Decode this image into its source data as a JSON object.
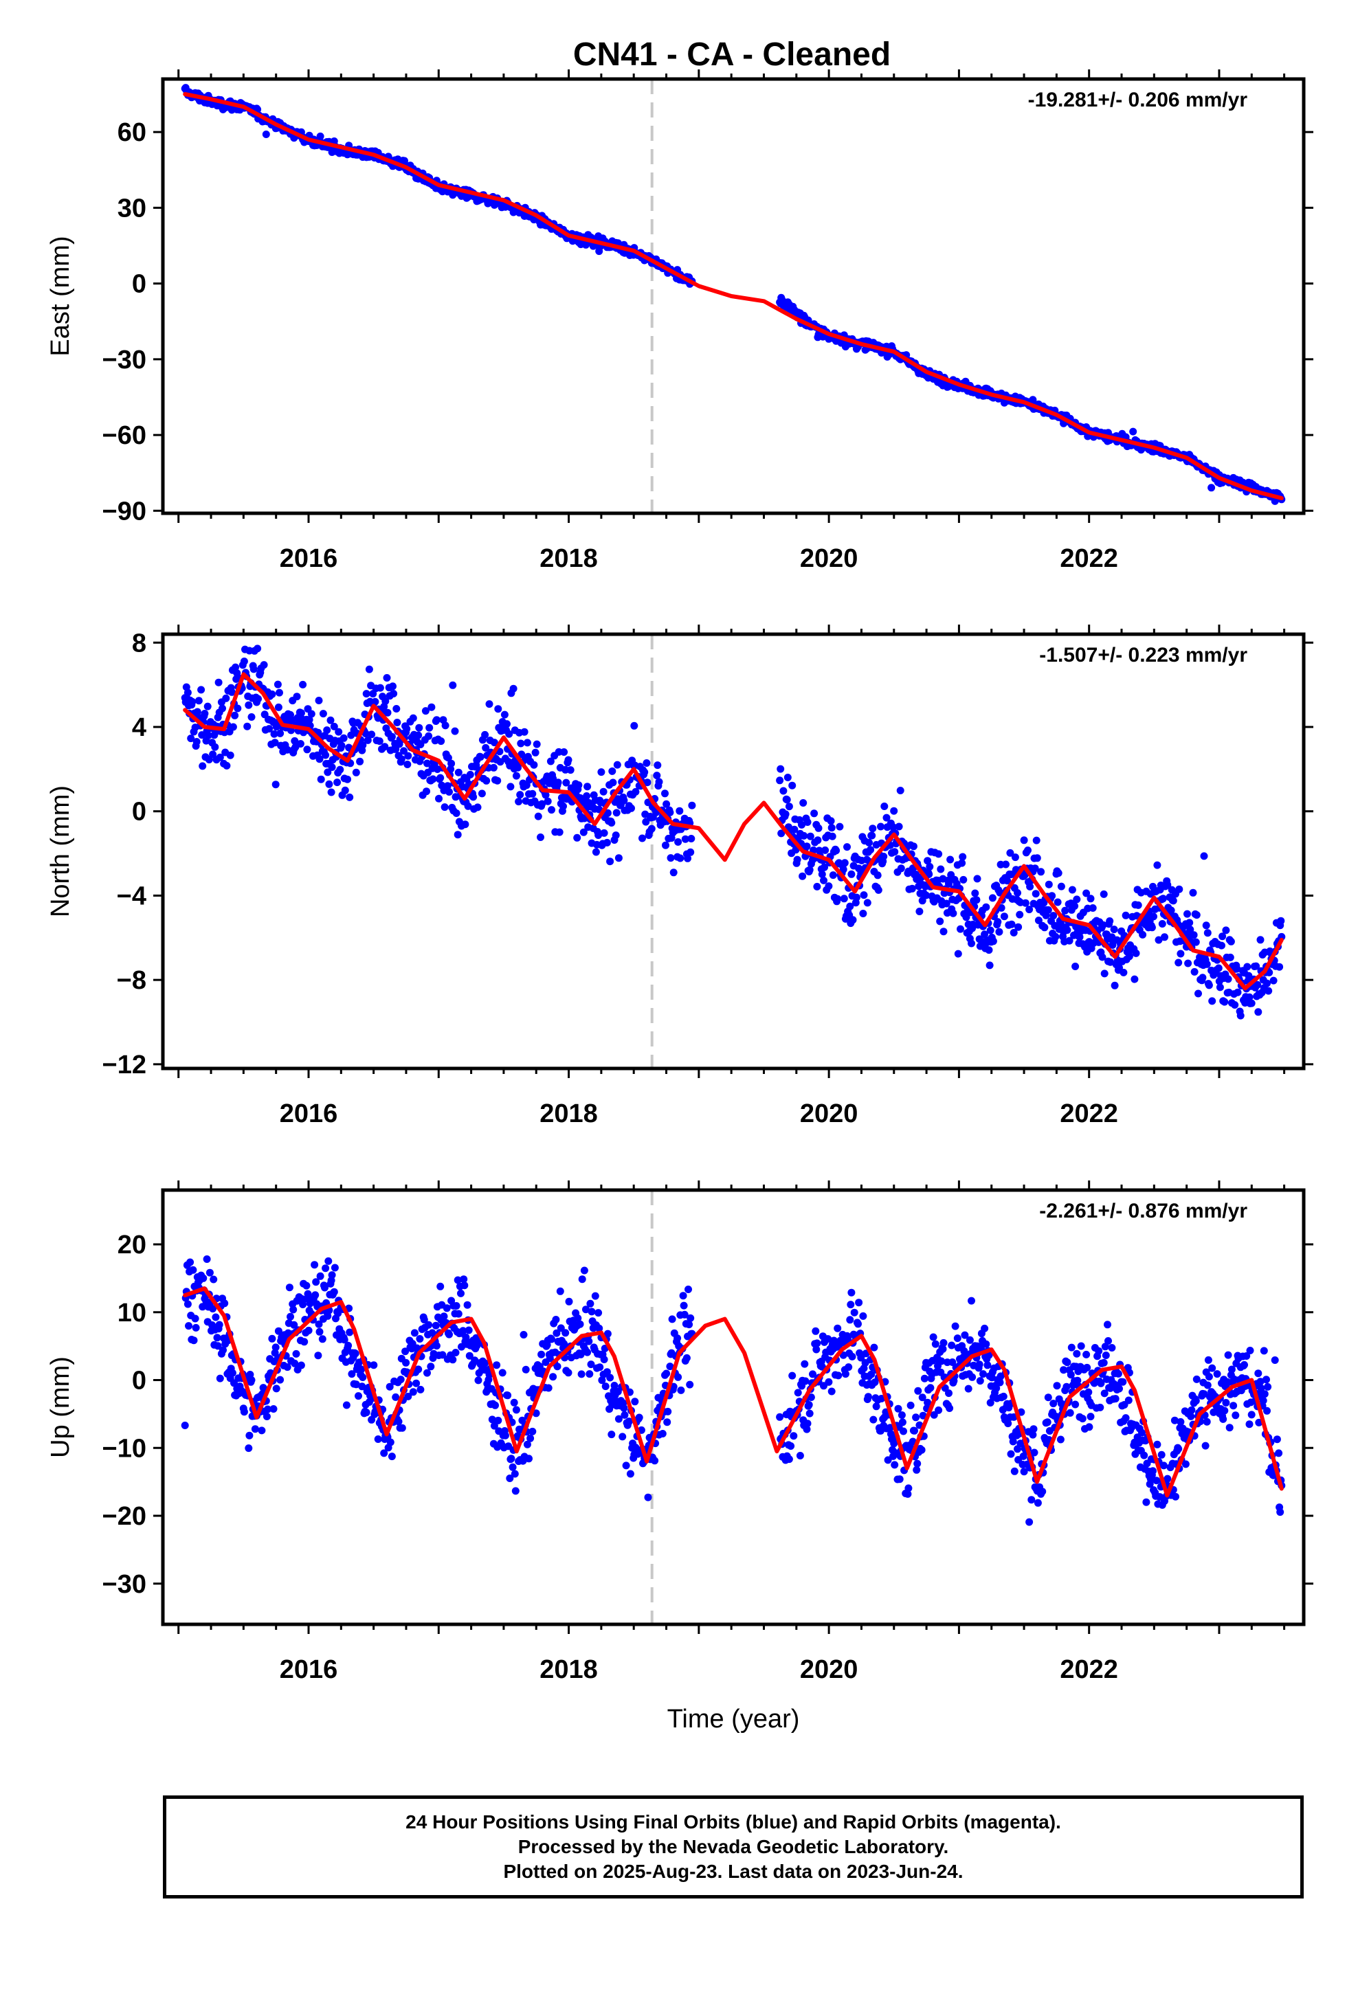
{
  "title": "CN41  - CA - Cleaned",
  "colors": {
    "data": "#0000ff",
    "model": "#ff0000",
    "event": "#c8c8c8",
    "frame": "#000000"
  },
  "footer": {
    "line1": "24 Hour Positions Using Final Orbits (blue) and Rapid Orbits (magenta).",
    "line2": "Processed by the Nevada Geodetic Laboratory.",
    "line3": "Plotted on 2025-Aug-23. Last data on 2023-Jun-24."
  },
  "chart_data": [
    {
      "type": "scatter",
      "component": "East",
      "ylabel": "East (mm)",
      "rate_label": "-19.281+/- 0.206 mm/yr",
      "xlim": [
        2014.88,
        2023.65
      ],
      "ylim": [
        -91,
        81
      ],
      "xticks": [
        2016,
        2018,
        2020,
        2022
      ],
      "yticks": [
        60,
        30,
        0,
        -30,
        -60,
        -90
      ],
      "event_line_x": 2018.64,
      "data_gap": [
        2018.95,
        2019.62
      ],
      "series": [
        {
          "name": "daily positions",
          "style": "points",
          "x": [
            2015.05,
            2015.25,
            2015.5,
            2015.75,
            2016.0,
            2016.25,
            2016.5,
            2016.75,
            2017.0,
            2017.25,
            2017.5,
            2017.75,
            2018.0,
            2018.25,
            2018.5,
            2018.75,
            2018.95,
            2019.65,
            2019.85,
            2020.0,
            2020.25,
            2020.5,
            2020.75,
            2021.0,
            2021.25,
            2021.5,
            2021.75,
            2022.0,
            2022.25,
            2022.5,
            2022.75,
            2023.0,
            2023.25,
            2023.48
          ],
          "y": [
            76,
            72,
            70,
            63,
            57,
            53,
            51,
            46,
            38,
            35,
            32,
            26,
            19,
            16,
            13,
            6,
            0,
            -7,
            -16,
            -21,
            -24,
            -27,
            -36,
            -40,
            -44,
            -47,
            -52,
            -59,
            -62,
            -65,
            -69,
            -77,
            -81,
            -85
          ]
        },
        {
          "name": "model",
          "style": "line",
          "x": [
            2015.05,
            2015.25,
            2015.5,
            2015.75,
            2016.0,
            2016.25,
            2016.5,
            2016.75,
            2017.0,
            2017.25,
            2017.5,
            2017.75,
            2018.0,
            2018.25,
            2018.5,
            2018.75,
            2019.0,
            2019.25,
            2019.5,
            2019.75,
            2020.0,
            2020.25,
            2020.5,
            2020.75,
            2021.0,
            2021.25,
            2021.5,
            2021.75,
            2022.0,
            2022.25,
            2022.5,
            2022.75,
            2023.0,
            2023.25,
            2023.48
          ],
          "y": [
            75,
            73,
            70,
            63,
            57,
            54,
            51,
            46,
            39,
            36,
            33,
            27,
            19,
            16,
            13,
            6,
            -1,
            -5,
            -7,
            -14,
            -20,
            -24,
            -27,
            -35,
            -40,
            -44,
            -47,
            -52,
            -59,
            -62,
            -65,
            -69,
            -77,
            -82,
            -85
          ]
        }
      ]
    },
    {
      "type": "scatter",
      "component": "North",
      "ylabel": "North (mm)",
      "rate_label": "-1.507+/- 0.223 mm/yr",
      "xlim": [
        2014.88,
        2023.65
      ],
      "ylim": [
        -12.2,
        8.4
      ],
      "xticks": [
        2016,
        2018,
        2020,
        2022
      ],
      "yticks": [
        8,
        4,
        0,
        -4,
        -8,
        -12
      ],
      "event_line_x": 2018.64,
      "data_gap": [
        2018.95,
        2019.62
      ],
      "series": [
        {
          "name": "daily positions",
          "style": "points",
          "x": [
            2015.05,
            2015.2,
            2015.35,
            2015.5,
            2015.65,
            2015.8,
            2016.0,
            2016.15,
            2016.3,
            2016.5,
            2016.65,
            2016.8,
            2017.0,
            2017.2,
            2017.35,
            2017.5,
            2017.65,
            2017.8,
            2018.0,
            2018.2,
            2018.35,
            2018.5,
            2018.65,
            2018.8,
            2018.95,
            2019.65,
            2019.8,
            2020.0,
            2020.2,
            2020.35,
            2020.5,
            2020.65,
            2020.8,
            2021.0,
            2021.2,
            2021.35,
            2021.5,
            2021.65,
            2021.8,
            2022.0,
            2022.2,
            2022.35,
            2022.5,
            2022.65,
            2022.8,
            2023.0,
            2023.2,
            2023.35,
            2023.48
          ],
          "y": [
            5,
            4,
            4,
            6.5,
            5.5,
            4,
            4,
            3,
            2.5,
            5,
            4,
            3,
            2.5,
            0.5,
            2,
            3.5,
            2,
            1,
            1,
            0,
            -0.5,
            2,
            0.5,
            -1,
            -0.5,
            0,
            -1.5,
            -2,
            -4,
            -2,
            -1,
            -2.5,
            -3.5,
            -4,
            -6,
            -4,
            -2.5,
            -4,
            -5,
            -5.5,
            -7,
            -6,
            -4,
            -5,
            -6.5,
            -7,
            -8.5,
            -8,
            -6
          ]
        },
        {
          "name": "model",
          "style": "line",
          "x": [
            2015.05,
            2015.2,
            2015.35,
            2015.5,
            2015.65,
            2015.8,
            2016.0,
            2016.15,
            2016.3,
            2016.5,
            2016.65,
            2016.8,
            2017.0,
            2017.2,
            2017.35,
            2017.5,
            2017.65,
            2017.8,
            2018.0,
            2018.2,
            2018.35,
            2018.5,
            2018.65,
            2018.8,
            2019.0,
            2019.2,
            2019.35,
            2019.5,
            2019.65,
            2019.8,
            2020.0,
            2020.2,
            2020.35,
            2020.5,
            2020.65,
            2020.8,
            2021.0,
            2021.2,
            2021.35,
            2021.5,
            2021.65,
            2021.8,
            2022.0,
            2022.2,
            2022.35,
            2022.5,
            2022.65,
            2022.8,
            2023.0,
            2023.2,
            2023.35,
            2023.48
          ],
          "y": [
            4.8,
            4.0,
            3.9,
            6.5,
            5.6,
            4.1,
            3.9,
            3.0,
            2.4,
            5.0,
            4.0,
            2.9,
            2.4,
            0.6,
            2.1,
            3.5,
            2.2,
            1.0,
            0.9,
            -0.6,
            0.8,
            2.0,
            0.4,
            -0.6,
            -0.8,
            -2.3,
            -0.6,
            0.4,
            -0.8,
            -1.9,
            -2.3,
            -3.8,
            -2.2,
            -1.1,
            -2.4,
            -3.6,
            -3.8,
            -5.4,
            -3.9,
            -2.6,
            -3.9,
            -5.1,
            -5.4,
            -6.9,
            -5.5,
            -4.1,
            -5.3,
            -6.6,
            -6.9,
            -8.4,
            -7.6,
            -6.1
          ]
        }
      ]
    },
    {
      "type": "scatter",
      "component": "Up",
      "ylabel": "Up (mm)",
      "xlabel": "Time (year)",
      "rate_label": "-2.261+/- 0.876 mm/yr",
      "xlim": [
        2014.88,
        2023.65
      ],
      "ylim": [
        -36,
        28
      ],
      "xticks": [
        2016,
        2018,
        2020,
        2022
      ],
      "yticks": [
        20,
        10,
        0,
        -10,
        -20,
        -30
      ],
      "event_line_x": 2018.64,
      "data_gap": [
        2018.95,
        2019.62
      ],
      "series": [
        {
          "name": "daily positions",
          "style": "points",
          "x": [
            2015.05,
            2015.2,
            2015.4,
            2015.6,
            2015.8,
            2016.0,
            2016.2,
            2016.4,
            2016.6,
            2016.8,
            2017.0,
            2017.2,
            2017.4,
            2017.6,
            2017.8,
            2018.0,
            2018.2,
            2018.4,
            2018.6,
            2018.8,
            2018.95,
            2019.65,
            2019.8,
            2020.0,
            2020.2,
            2020.4,
            2020.6,
            2020.8,
            2021.0,
            2021.2,
            2021.4,
            2021.6,
            2021.8,
            2022.0,
            2022.2,
            2022.4,
            2022.6,
            2022.8,
            2023.0,
            2023.2,
            2023.35,
            2023.48
          ],
          "y": [
            12,
            13,
            3,
            -6,
            6,
            10,
            12,
            0,
            -8,
            4,
            7,
            9,
            -2,
            -11,
            2,
            6,
            7,
            -5,
            -12,
            3,
            7,
            -9,
            -2,
            4,
            7,
            -4,
            -12,
            0,
            3,
            5,
            -6,
            -15,
            -2,
            1,
            2,
            -10,
            -17,
            -5,
            -2,
            0,
            -4,
            -16
          ]
        },
        {
          "name": "model",
          "style": "line",
          "x": [
            2015.05,
            2015.2,
            2015.35,
            2015.6,
            2015.85,
            2016.1,
            2016.25,
            2016.35,
            2016.6,
            2016.85,
            2017.1,
            2017.25,
            2017.35,
            2017.6,
            2017.85,
            2018.1,
            2018.25,
            2018.35,
            2018.6,
            2018.85,
            2019.05,
            2019.2,
            2019.35,
            2019.6,
            2019.85,
            2020.1,
            2020.25,
            2020.35,
            2020.6,
            2020.85,
            2021.1,
            2021.25,
            2021.35,
            2021.6,
            2021.85,
            2022.1,
            2022.25,
            2022.35,
            2022.6,
            2022.85,
            2023.1,
            2023.25,
            2023.48
          ],
          "y": [
            12.5,
            13.5,
            9.5,
            -5.5,
            6.0,
            10.5,
            11.5,
            7.5,
            -8.0,
            4.0,
            8.5,
            9.0,
            5.5,
            -10.5,
            2.0,
            6.5,
            7.0,
            3.5,
            -12.0,
            4.0,
            8.0,
            9.0,
            4.0,
            -10.5,
            -1.5,
            4.5,
            6.5,
            3.0,
            -13.0,
            -1.0,
            3.5,
            4.5,
            1.5,
            -15.0,
            -2.5,
            1.5,
            2.0,
            -1.5,
            -17.0,
            -5.0,
            -1.0,
            0.0,
            -16.0
          ]
        }
      ]
    }
  ]
}
